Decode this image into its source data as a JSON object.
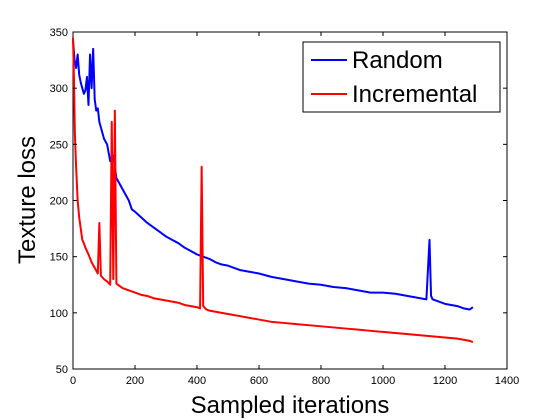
{
  "chart_data": {
    "type": "line",
    "title": "",
    "xlabel": "Sampled iterations",
    "ylabel": "Texture loss",
    "xlim": [
      0,
      1400
    ],
    "ylim": [
      50,
      350
    ],
    "xticks": [
      0,
      200,
      400,
      600,
      800,
      1000,
      1200,
      1400
    ],
    "yticks": [
      50,
      100,
      150,
      200,
      250,
      300,
      350
    ],
    "grid": false,
    "legend_position": "top-right",
    "series": [
      {
        "name": "Random",
        "color": "#0000ff",
        "x": [
          0,
          5,
          10,
          15,
          20,
          25,
          30,
          35,
          40,
          45,
          50,
          55,
          60,
          65,
          70,
          75,
          80,
          85,
          90,
          95,
          100,
          110,
          120,
          130,
          140,
          150,
          160,
          170,
          180,
          190,
          200,
          220,
          240,
          260,
          280,
          300,
          320,
          340,
          360,
          380,
          400,
          420,
          440,
          460,
          480,
          500,
          520,
          540,
          560,
          580,
          600,
          640,
          680,
          720,
          760,
          800,
          840,
          880,
          920,
          960,
          1000,
          1040,
          1080,
          1120,
          1140,
          1150,
          1155,
          1160,
          1180,
          1200,
          1220,
          1240,
          1260,
          1280,
          1290
        ],
        "y": [
          343,
          325,
          318,
          330,
          312,
          305,
          300,
          295,
          298,
          310,
          285,
          330,
          300,
          335,
          290,
          280,
          282,
          270,
          265,
          260,
          255,
          250,
          235,
          240,
          220,
          215,
          210,
          205,
          200,
          192,
          190,
          185,
          180,
          176,
          172,
          168,
          165,
          162,
          158,
          155,
          152,
          150,
          148,
          145,
          143,
          142,
          140,
          138,
          137,
          136,
          135,
          132,
          130,
          128,
          126,
          125,
          123,
          122,
          120,
          118,
          118,
          117,
          115,
          113,
          112,
          165,
          115,
          112,
          110,
          108,
          107,
          106,
          104,
          103,
          105
        ]
      },
      {
        "name": "Incremental",
        "color": "#ff0000",
        "x": [
          0,
          3,
          6,
          10,
          15,
          20,
          25,
          30,
          35,
          40,
          50,
          60,
          70,
          80,
          85,
          90,
          100,
          110,
          120,
          125,
          130,
          135,
          140,
          160,
          180,
          200,
          220,
          240,
          260,
          280,
          300,
          320,
          340,
          360,
          380,
          400,
          410,
          415,
          420,
          430,
          440,
          460,
          480,
          500,
          520,
          540,
          560,
          600,
          640,
          680,
          720,
          760,
          800,
          840,
          880,
          920,
          960,
          1000,
          1040,
          1080,
          1120,
          1160,
          1200,
          1240,
          1260,
          1280,
          1290
        ],
        "y": [
          345,
          310,
          260,
          230,
          200,
          185,
          175,
          165,
          162,
          158,
          152,
          145,
          140,
          135,
          180,
          133,
          130,
          128,
          125,
          270,
          130,
          280,
          126,
          122,
          120,
          118,
          116,
          115,
          113,
          112,
          111,
          110,
          109,
          107,
          106,
          105,
          104,
          230,
          106,
          103,
          102,
          101,
          100,
          99,
          98,
          97,
          96,
          94,
          92,
          91,
          90,
          89,
          88,
          87,
          86,
          85,
          84,
          83,
          82,
          81,
          80,
          79,
          78,
          77,
          76,
          75,
          74
        ]
      }
    ]
  }
}
